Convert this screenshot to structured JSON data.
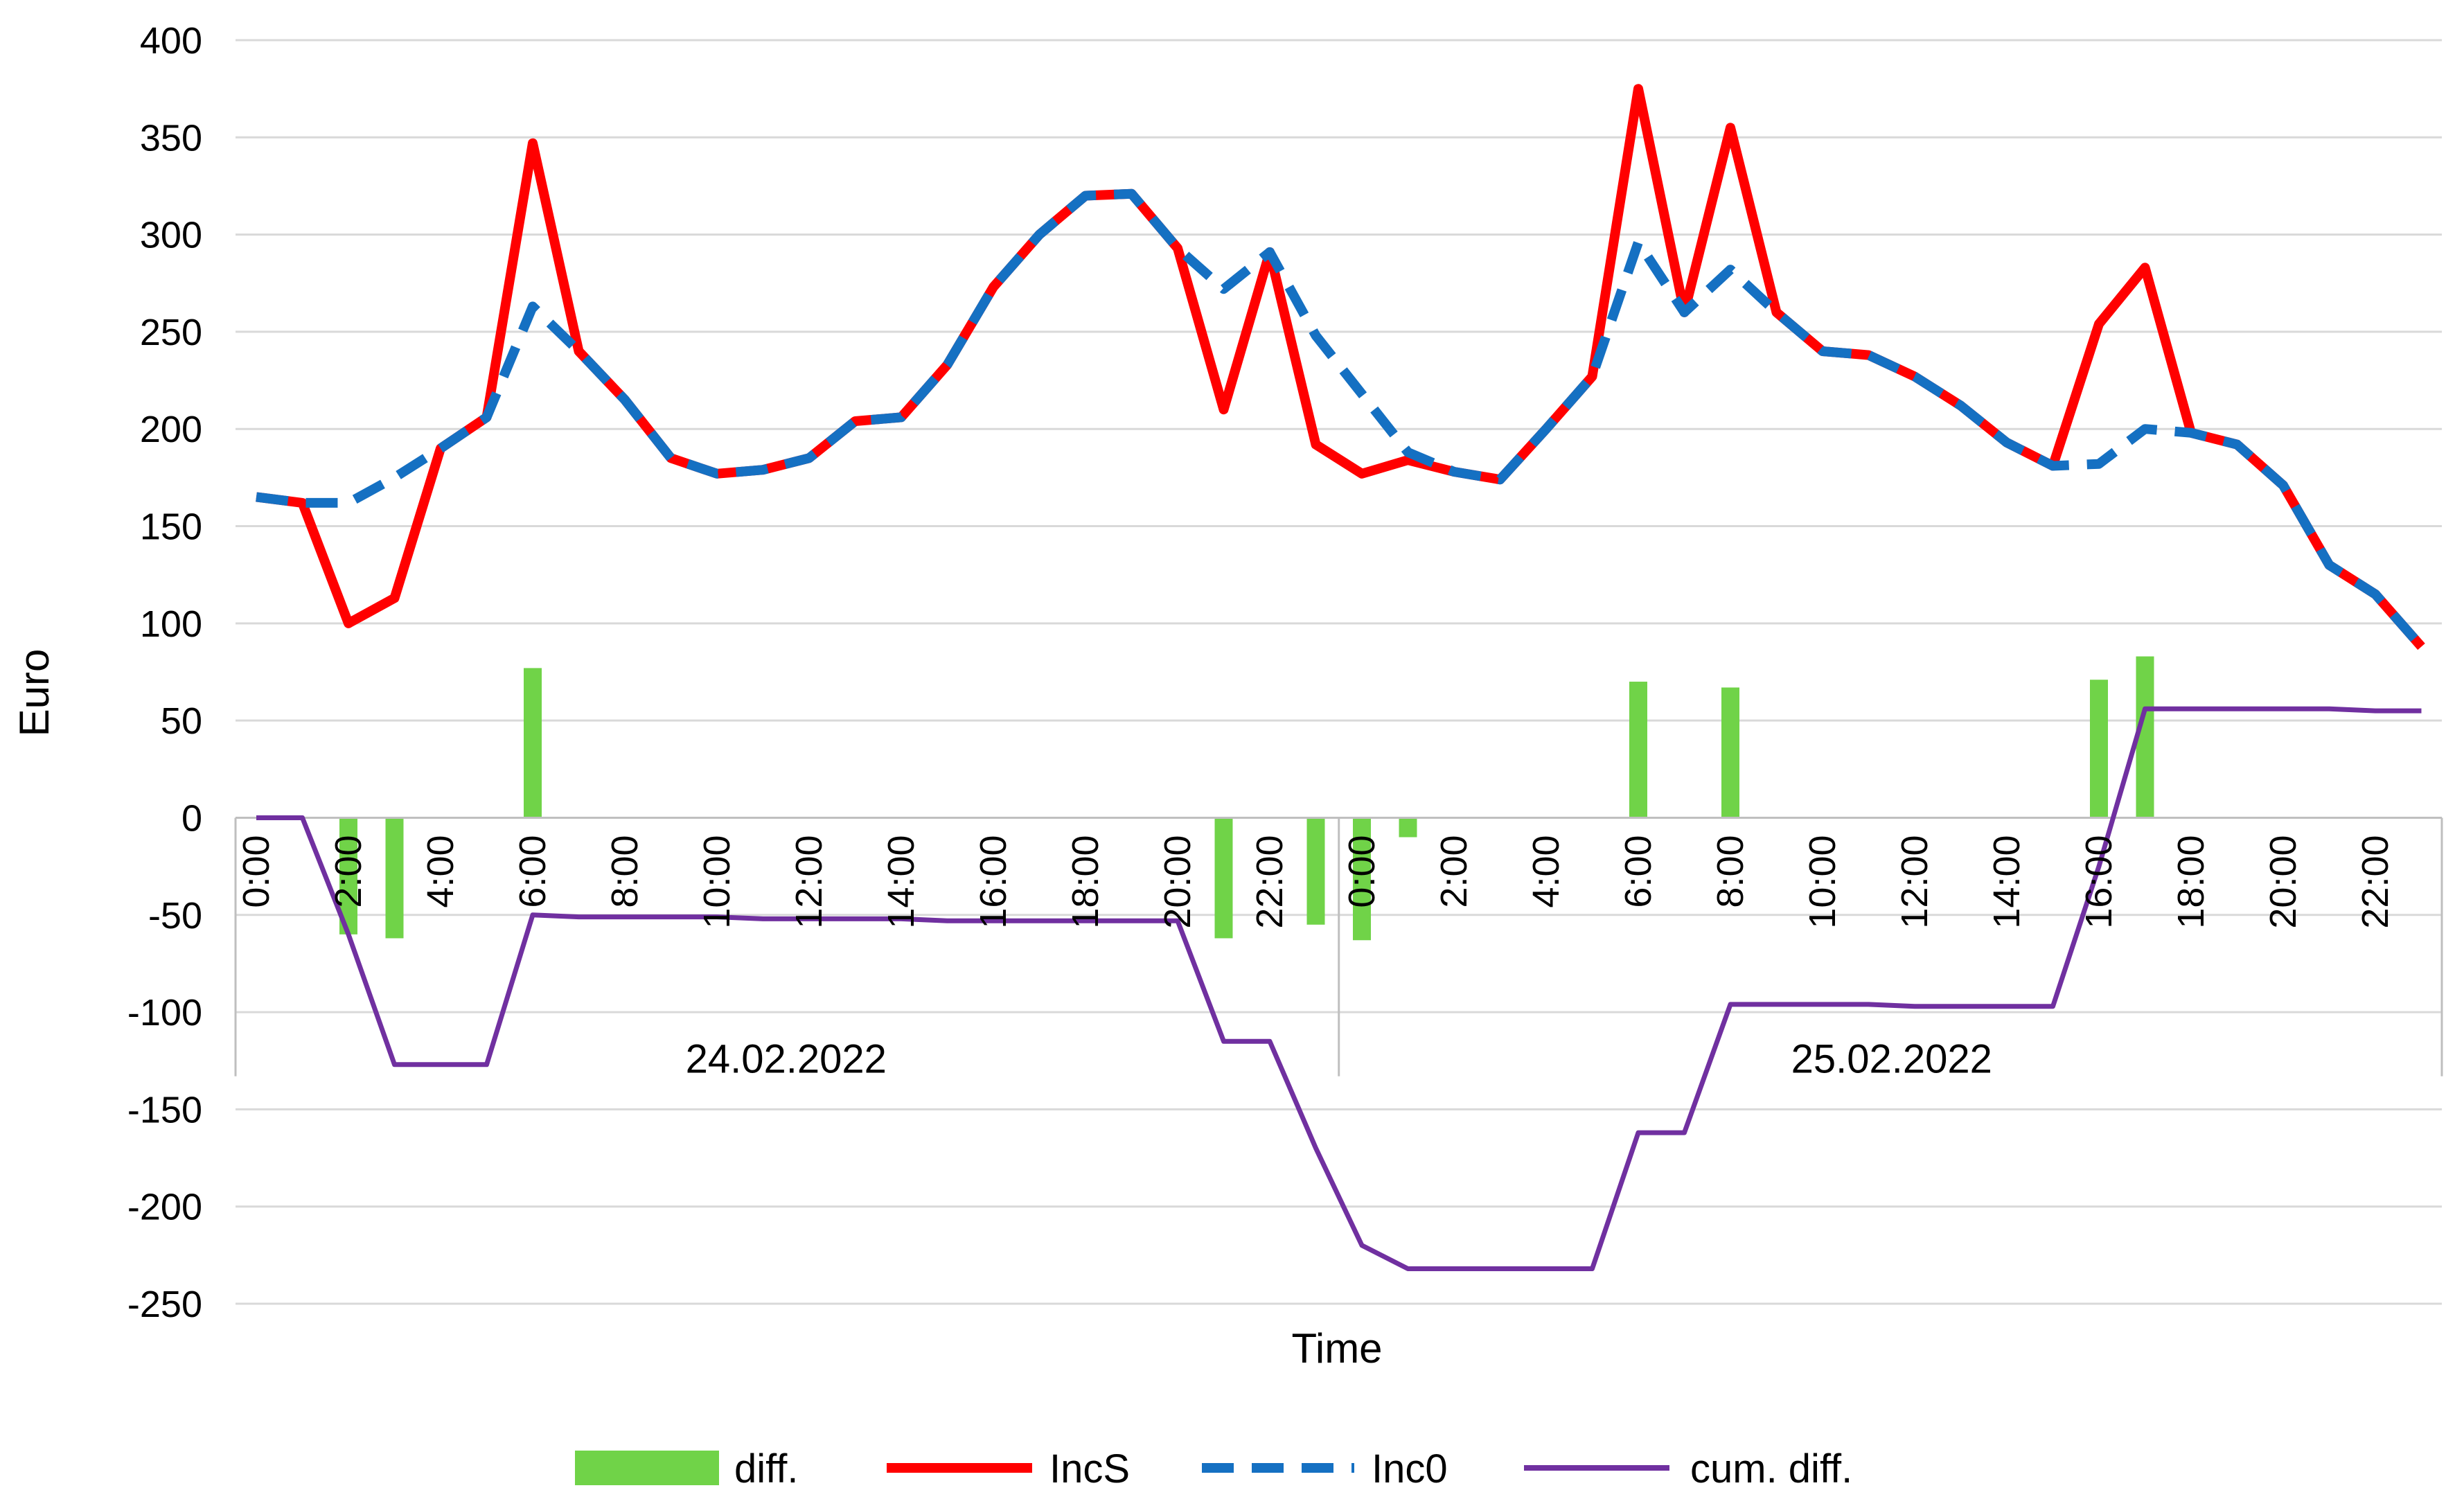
{
  "chart_data": {
    "type": "bar+line",
    "xlabel": "Time",
    "ylabel": "Euro",
    "ylim": [
      -250,
      400
    ],
    "yticks": [
      "400",
      "350",
      "300",
      "250",
      "200",
      "150",
      "100",
      "50",
      "0",
      "-50",
      "-100",
      "-150",
      "-200",
      "-250"
    ],
    "grid": "horizontal",
    "legend_position": "bottom",
    "hour_tick_labels": [
      "0:00",
      "2:00",
      "4:00",
      "6:00",
      "8:00",
      "10:00",
      "12:00",
      "14:00",
      "16:00",
      "18:00",
      "20:00",
      "22:00",
      "0:00",
      "2:00",
      "4:00",
      "6:00",
      "8:00",
      "10:00",
      "12:00",
      "14:00",
      "16:00",
      "18:00",
      "20:00",
      "22:00"
    ],
    "day_groups": [
      "24.02.2022",
      "25.02.2022"
    ],
    "series": [
      {
        "name": "diff.",
        "type": "bar",
        "color": "#70d348",
        "values": [
          0,
          0,
          -60,
          -62,
          0,
          0,
          77,
          0,
          0,
          0,
          0,
          0,
          0,
          0,
          0,
          0,
          0,
          0,
          0,
          0,
          0,
          -62,
          0,
          -55,
          -63,
          -10,
          0,
          0,
          0,
          0,
          70,
          0,
          67,
          0,
          0,
          0,
          0,
          0,
          0,
          0,
          71,
          83,
          0,
          0,
          0,
          0,
          0,
          0
        ]
      },
      {
        "name": "IncS",
        "type": "line",
        "color": "#ff0000",
        "dash": "solid",
        "values": [
          165,
          162,
          100,
          113,
          190,
          206,
          347,
          240,
          215,
          185,
          177,
          179,
          185,
          204,
          206,
          233,
          273,
          300,
          320,
          321,
          293,
          210,
          291,
          192,
          177,
          184,
          178,
          174,
          200,
          227,
          375,
          260,
          355,
          260,
          240,
          238,
          227,
          212,
          193,
          181,
          254,
          283,
          198,
          192,
          171,
          130,
          115,
          88
        ]
      },
      {
        "name": "Inc0",
        "type": "line",
        "color": "#1570c2",
        "dash": "dashed",
        "values": [
          165,
          162,
          162,
          175,
          190,
          206,
          263,
          240,
          215,
          185,
          177,
          179,
          185,
          204,
          206,
          233,
          273,
          300,
          320,
          321,
          293,
          272,
          291,
          248,
          218,
          188,
          178,
          174,
          200,
          227,
          296,
          260,
          282,
          260,
          240,
          238,
          227,
          212,
          193,
          181,
          182,
          200,
          198,
          192,
          171,
          130,
          115,
          88
        ]
      },
      {
        "name": "cum. diff.",
        "type": "line",
        "color": "#7030a0",
        "dash": "solid",
        "values": [
          0,
          0,
          -60,
          -127,
          -127,
          -127,
          -50,
          -51,
          -51,
          -51,
          -51,
          -52,
          -52,
          -52,
          -52,
          -53,
          -53,
          -53,
          -53,
          -53,
          -53,
          -115,
          -115,
          -170,
          -220,
          -232,
          -232,
          -232,
          -232,
          -232,
          -162,
          -162,
          -96,
          -96,
          -96,
          -96,
          -97,
          -97,
          -97,
          -97,
          -25,
          56,
          56,
          56,
          56,
          56,
          55,
          55
        ]
      }
    ]
  }
}
